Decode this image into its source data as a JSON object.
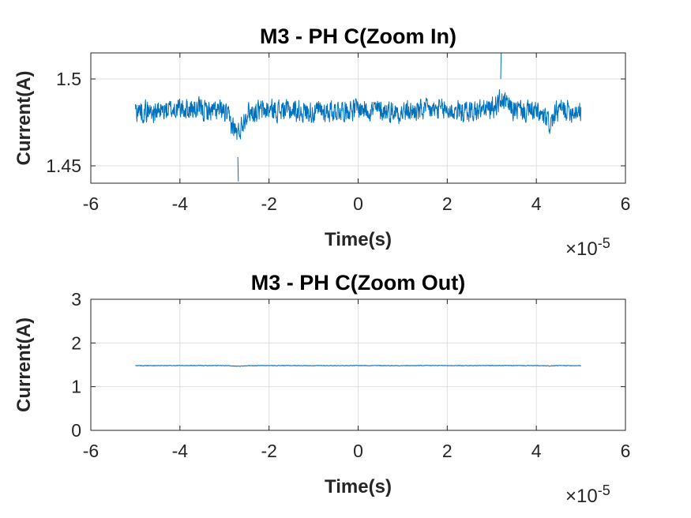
{
  "chart_data": [
    {
      "type": "line",
      "title": "M3 - PH C(Zoom In)",
      "xlabel": "Time(s)",
      "ylabel": "Current(A)",
      "x_multiplier_label": "10",
      "x_multiplier_exponent": "-5",
      "xlim": [
        -6,
        6
      ],
      "ylim": [
        1.44,
        1.515
      ],
      "xticks": [
        "-6",
        "-4",
        "-2",
        "0",
        "2",
        "4",
        "6"
      ],
      "xtick_values": [
        -6,
        -4,
        -2,
        0,
        2,
        4,
        6
      ],
      "yticks": [
        "1.45",
        "1.5"
      ],
      "ytick_values": [
        1.45,
        1.5
      ],
      "grid": true,
      "series": [
        {
          "color": "#0072BD",
          "x": [
            -5,
            -4.5,
            -4,
            -3.5,
            -3,
            -2.7,
            -2.5,
            -2,
            -1.5,
            -1,
            -0.5,
            0,
            0.5,
            1,
            1.5,
            2,
            2.5,
            3,
            3.2,
            3.5,
            4,
            4.3,
            4.5,
            5
          ],
          "y": [
            1.482,
            1.481,
            1.483,
            1.482,
            1.481,
            1.468,
            1.481,
            1.482,
            1.482,
            1.481,
            1.482,
            1.483,
            1.482,
            1.481,
            1.482,
            1.482,
            1.481,
            1.483,
            1.488,
            1.482,
            1.481,
            1.474,
            1.482,
            1.482
          ],
          "y_min": 1.441,
          "y_max": 1.515
        }
      ]
    },
    {
      "type": "line",
      "title": "M3 - PH C(Zoom Out)",
      "xlabel": "Time(s)",
      "ylabel": "Current(A)",
      "x_multiplier_label": "10",
      "x_multiplier_exponent": "-5",
      "xlim": [
        -6,
        6
      ],
      "ylim": [
        0,
        3
      ],
      "xticks": [
        "-6",
        "-4",
        "-2",
        "0",
        "2",
        "4",
        "6"
      ],
      "xtick_values": [
        -6,
        -4,
        -2,
        0,
        2,
        4,
        6
      ],
      "yticks": [
        "0",
        "1",
        "2",
        "3"
      ],
      "ytick_values": [
        0,
        1,
        2,
        3
      ],
      "grid": true,
      "series": [
        {
          "color": "#0072BD",
          "x": [
            -5,
            -4.5,
            -4,
            -3.5,
            -3,
            -2.7,
            -2.5,
            -2,
            -1.5,
            -1,
            -0.5,
            0,
            0.5,
            1,
            1.5,
            2,
            2.5,
            3,
            3.5,
            4,
            4.3,
            4.5,
            5
          ],
          "y": [
            1.482,
            1.481,
            1.483,
            1.482,
            1.481,
            1.468,
            1.481,
            1.482,
            1.482,
            1.481,
            1.482,
            1.483,
            1.482,
            1.481,
            1.482,
            1.482,
            1.481,
            1.483,
            1.482,
            1.481,
            1.474,
            1.482,
            1.482
          ]
        }
      ]
    }
  ]
}
